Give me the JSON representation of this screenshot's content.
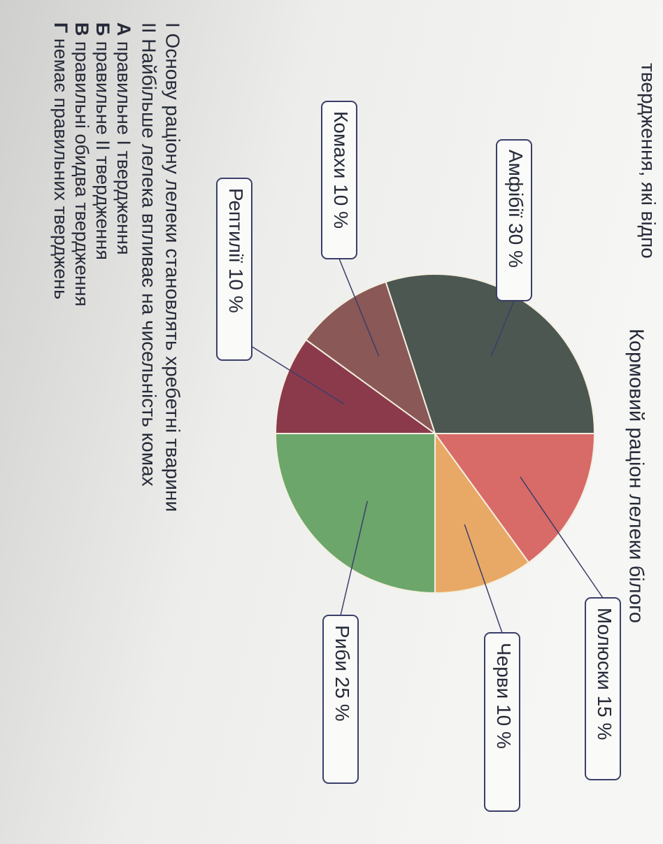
{
  "header_text": "твердження, які відпо",
  "chart_data": {
    "type": "pie",
    "title": "Кормовий раціон лелеки білого",
    "categories": [
      "Амфібії",
      "Молюски",
      "Черви",
      "Риби",
      "Рептилії",
      "Комахи"
    ],
    "values": [
      30,
      15,
      10,
      25,
      10,
      10
    ],
    "value_labels": [
      "30 %",
      "15 %",
      "10 %",
      "25 %",
      "10 %",
      "10 %"
    ],
    "colors": [
      "#4b5750",
      "#d86a68",
      "#e9a966",
      "#6ca66b",
      "#8b3a4c",
      "#8a5856"
    ]
  },
  "statements": [
    "I Основу раціону лелеки становлять хребетні тварини",
    "II Найбільше лелека впливає на чисельність комах"
  ],
  "options": [
    {
      "letter": "А",
      "text": "правильне I твердження"
    },
    {
      "letter": "Б",
      "text": "правильне II твердження"
    },
    {
      "letter": "В",
      "text": "правильні обидва твердження"
    },
    {
      "letter": "Г",
      "text": "немає правильних тверджень"
    }
  ]
}
